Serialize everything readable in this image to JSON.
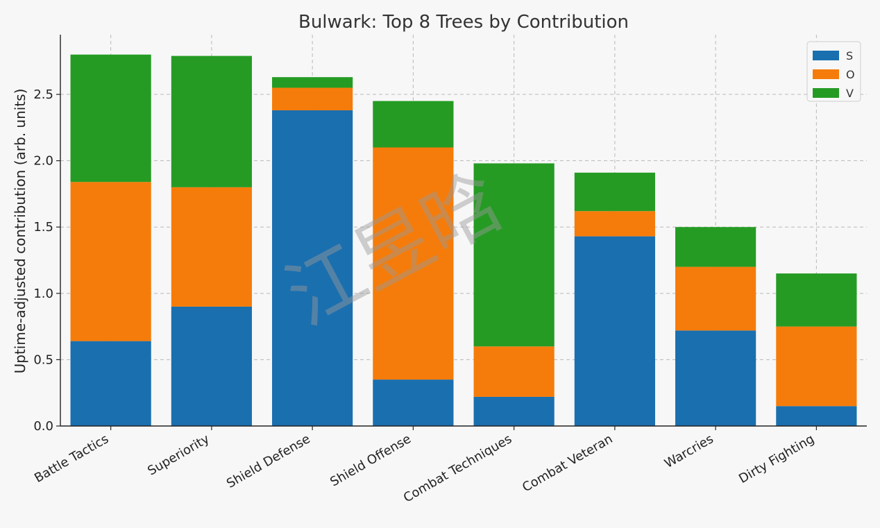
{
  "chart_data": {
    "type": "bar",
    "stacked": true,
    "title": "Bulwark: Top 8 Trees by Contribution",
    "xlabel": "",
    "ylabel": "Uptime-adjusted contribution (arb. units)",
    "ylim": [
      0,
      2.95
    ],
    "yticks": [
      "0.0",
      "0.5",
      "1.0",
      "1.5",
      "2.0",
      "2.5"
    ],
    "grid": true,
    "legend_position": "top-right",
    "categories": [
      "Battle Tactics",
      "Superiority",
      "Shield Defense",
      "Shield Offense",
      "Combat Techniques",
      "Combat Veteran",
      "Warcries",
      "Dirty Fighting"
    ],
    "series": [
      {
        "name": "S",
        "color": "#1a6faf",
        "values": [
          0.64,
          0.9,
          2.38,
          0.35,
          0.22,
          1.43,
          0.72,
          0.15
        ]
      },
      {
        "name": "O",
        "color": "#f57c0a",
        "values": [
          1.2,
          0.9,
          0.17,
          1.75,
          0.38,
          0.19,
          0.48,
          0.6
        ]
      },
      {
        "name": "V",
        "color": "#259b24",
        "values": [
          0.96,
          0.99,
          0.08,
          0.35,
          1.38,
          0.29,
          0.3,
          0.4
        ]
      }
    ]
  },
  "watermark": "江昱晗"
}
